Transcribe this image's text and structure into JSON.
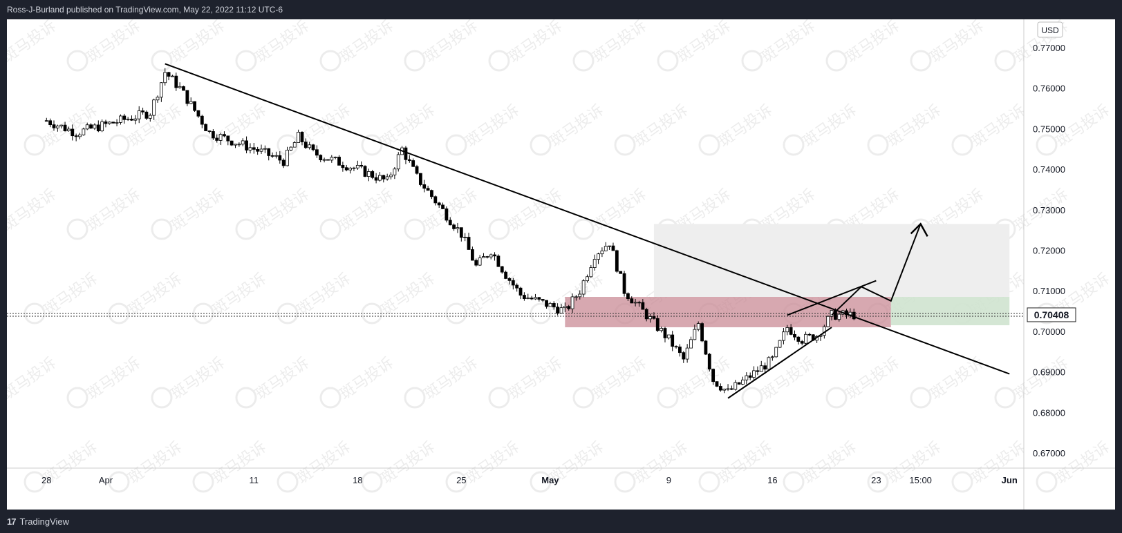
{
  "header": {
    "attribution": "Ross-J-Burland published on TradingView.com, May 22, 2022 11:12 UTC-6"
  },
  "footer": {
    "brand": "TradingView"
  },
  "watermark_text": "斑马投诉",
  "colors": {
    "up_candle": "#ffffff",
    "down_candle": "#000000",
    "supply_zone": "#c98b95",
    "target_zone": "#eeeeee",
    "green_zone": "#cfe3cf",
    "trendline": "#000000"
  },
  "chart_data": {
    "type": "candlestick",
    "currency": "USD",
    "last_price_label": "0.70408",
    "last_price": 0.70408,
    "ylim": [
      0.664,
      0.777
    ],
    "y_ticks": [
      "0.77000",
      "0.76000",
      "0.75000",
      "0.74000",
      "0.73000",
      "0.72000",
      "0.71000",
      "0.70000",
      "0.69000",
      "0.68000",
      "0.67000"
    ],
    "x_ticks": [
      "28",
      "Apr",
      "11",
      "18",
      "25",
      "May",
      "9",
      "16",
      "23",
      "15:00",
      "Jun"
    ],
    "price_path": [
      [
        "Mar 28",
        0.752
      ],
      [
        "Mar 30",
        0.749
      ],
      [
        "Apr 1",
        0.751
      ],
      [
        "Apr 4",
        0.754
      ],
      [
        "Apr 5",
        0.764
      ],
      [
        "Apr 6",
        0.76
      ],
      [
        "Apr 8",
        0.749
      ],
      [
        "Apr 11",
        0.745
      ],
      [
        "Apr 13",
        0.742
      ],
      [
        "Apr 14",
        0.748
      ],
      [
        "Apr 15",
        0.744
      ],
      [
        "Apr 18",
        0.74
      ],
      [
        "Apr 20",
        0.737
      ],
      [
        "Apr 21",
        0.745
      ],
      [
        "Apr 22",
        0.738
      ],
      [
        "Apr 25",
        0.724
      ],
      [
        "Apr 26",
        0.716
      ],
      [
        "Apr 27",
        0.72
      ],
      [
        "Apr 28",
        0.714
      ],
      [
        "Apr 29",
        0.709
      ],
      [
        "May 2",
        0.705
      ],
      [
        "May 3",
        0.71
      ],
      [
        "May 4",
        0.719
      ],
      [
        "May 5",
        0.722
      ],
      [
        "May 6",
        0.71
      ],
      [
        "May 9",
        0.698
      ],
      [
        "May 10",
        0.693
      ],
      [
        "May 11",
        0.702
      ],
      [
        "May 12",
        0.688
      ],
      [
        "May 13",
        0.685
      ],
      [
        "May 16",
        0.693
      ],
      [
        "May 17",
        0.701
      ],
      [
        "May 18",
        0.698
      ],
      [
        "May 19",
        0.699
      ],
      [
        "May 20",
        0.704
      ],
      [
        "May 22",
        0.7041
      ]
    ],
    "drawings": {
      "descending_trendline": [
        [
          "Apr 5",
          0.766
        ],
        [
          "Jun 1",
          0.6895
        ]
      ],
      "rising_wedge_lower": [
        [
          "May 13",
          0.6835
        ],
        [
          "May 20",
          0.701
        ]
      ],
      "rising_wedge_upper": [
        [
          "May 17",
          0.704
        ],
        [
          "May 23",
          0.7125
        ]
      ],
      "projection_arrow": [
        [
          "May 20",
          0.704
        ],
        [
          "May 22",
          0.711
        ],
        [
          "May 24",
          0.7075
        ],
        [
          "May 26",
          0.7265
        ]
      ],
      "supply_zone": {
        "from": "May 2",
        "to": "May 24",
        "low": 0.701,
        "high": 0.7085
      },
      "target_zone": {
        "from": "May 8",
        "to": "Jun 1",
        "low": 0.7085,
        "high": 0.7265
      },
      "green_zone": {
        "from": "May 24",
        "to": "Jun 1",
        "low": 0.7015,
        "high": 0.7085
      }
    }
  }
}
